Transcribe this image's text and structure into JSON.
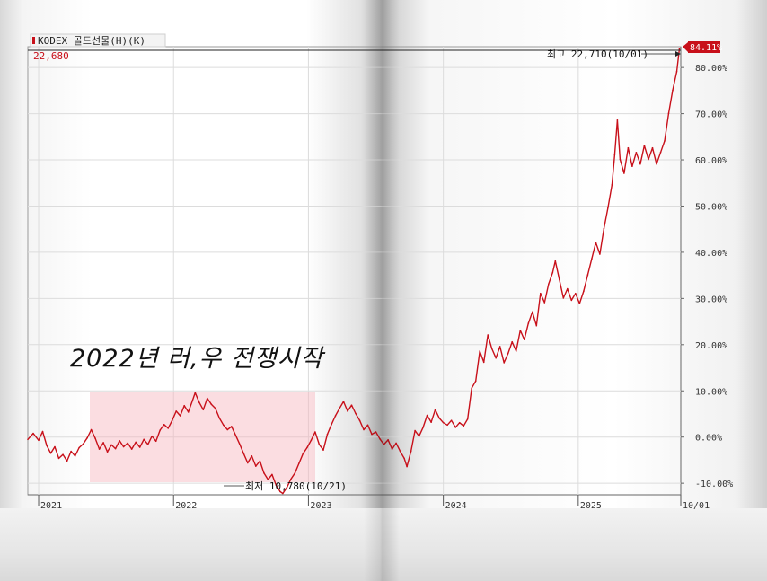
{
  "chart_data": {
    "type": "line",
    "legend_label": "KODEX 골드선물(H)(K)",
    "last_price_label": "22,680",
    "x_tick_labels": [
      "2021",
      "2022",
      "2023",
      "2024",
      "2025",
      "10/01"
    ],
    "y_tick_labels": [
      "80.00%",
      "70.00%",
      "60.00%",
      "50.00%",
      "40.00%",
      "30.00%",
      "20.00%",
      "10.00%",
      "0.00%",
      "-10.00%"
    ],
    "ylim": [
      -12.5,
      84.5
    ],
    "current_value_label": "84.11%",
    "current_value": 84.11,
    "max_annotation": "최고 22,710(10/01)",
    "min_annotation": "최저 10,780(10/21)",
    "handwritten_note": "2022년 러,우 전쟁시작",
    "series_color": "#c8101a",
    "highlight_color": "#f6b3bd",
    "series": [
      {
        "values": [
          [
            2020.92,
            -0.5
          ],
          [
            2020.96,
            0.8
          ],
          [
            2021.0,
            -0.7
          ],
          [
            2021.03,
            1.2
          ],
          [
            2021.06,
            -1.8
          ],
          [
            2021.09,
            -3.5
          ],
          [
            2021.12,
            -2.1
          ],
          [
            2021.15,
            -4.6
          ],
          [
            2021.18,
            -3.8
          ],
          [
            2021.21,
            -5.2
          ],
          [
            2021.24,
            -3.1
          ],
          [
            2021.27,
            -4.1
          ],
          [
            2021.3,
            -2.3
          ],
          [
            2021.33,
            -1.5
          ],
          [
            2021.36,
            -0.2
          ],
          [
            2021.39,
            1.6
          ],
          [
            2021.42,
            -0.3
          ],
          [
            2021.45,
            -2.6
          ],
          [
            2021.48,
            -1.2
          ],
          [
            2021.51,
            -3.2
          ],
          [
            2021.54,
            -1.7
          ],
          [
            2021.57,
            -2.5
          ],
          [
            2021.6,
            -0.8
          ],
          [
            2021.63,
            -2.1
          ],
          [
            2021.66,
            -1.3
          ],
          [
            2021.69,
            -2.6
          ],
          [
            2021.72,
            -1.1
          ],
          [
            2021.75,
            -2.2
          ],
          [
            2021.78,
            -0.5
          ],
          [
            2021.81,
            -1.6
          ],
          [
            2021.84,
            0.2
          ],
          [
            2021.87,
            -0.9
          ],
          [
            2021.9,
            1.5
          ],
          [
            2021.93,
            2.7
          ],
          [
            2021.96,
            1.9
          ],
          [
            2021.99,
            3.6
          ],
          [
            2022.02,
            5.6
          ],
          [
            2022.05,
            4.6
          ],
          [
            2022.08,
            6.8
          ],
          [
            2022.11,
            5.4
          ],
          [
            2022.14,
            7.9
          ],
          [
            2022.16,
            9.6
          ],
          [
            2022.19,
            7.5
          ],
          [
            2022.22,
            5.9
          ],
          [
            2022.25,
            8.4
          ],
          [
            2022.28,
            7.1
          ],
          [
            2022.31,
            6.2
          ],
          [
            2022.34,
            4.1
          ],
          [
            2022.37,
            2.6
          ],
          [
            2022.4,
            1.6
          ],
          [
            2022.43,
            2.3
          ],
          [
            2022.46,
            0.4
          ],
          [
            2022.49,
            -1.5
          ],
          [
            2022.52,
            -3.6
          ],
          [
            2022.55,
            -5.6
          ],
          [
            2022.58,
            -4.1
          ],
          [
            2022.61,
            -6.3
          ],
          [
            2022.64,
            -5.2
          ],
          [
            2022.67,
            -7.8
          ],
          [
            2022.7,
            -9.2
          ],
          [
            2022.73,
            -8.1
          ],
          [
            2022.76,
            -10.4
          ],
          [
            2022.79,
            -11.8
          ],
          [
            2022.81,
            -12.2
          ],
          [
            2022.84,
            -10.9
          ],
          [
            2022.87,
            -9.1
          ],
          [
            2022.9,
            -7.8
          ],
          [
            2022.93,
            -5.7
          ],
          [
            2022.96,
            -3.6
          ],
          [
            2022.99,
            -2.3
          ],
          [
            2023.02,
            -0.7
          ],
          [
            2023.05,
            1.1
          ],
          [
            2023.08,
            -1.6
          ],
          [
            2023.11,
            -2.8
          ],
          [
            2023.14,
            0.6
          ],
          [
            2023.17,
            2.7
          ],
          [
            2023.2,
            4.6
          ],
          [
            2023.23,
            6.2
          ],
          [
            2023.26,
            7.7
          ],
          [
            2023.29,
            5.6
          ],
          [
            2023.32,
            6.9
          ],
          [
            2023.35,
            5.1
          ],
          [
            2023.38,
            3.6
          ],
          [
            2023.41,
            1.6
          ],
          [
            2023.44,
            2.6
          ],
          [
            2023.47,
            0.6
          ],
          [
            2023.5,
            1.1
          ],
          [
            2023.53,
            -0.4
          ],
          [
            2023.56,
            -1.6
          ],
          [
            2023.59,
            -0.6
          ],
          [
            2023.62,
            -2.6
          ],
          [
            2023.65,
            -1.3
          ],
          [
            2023.68,
            -3.1
          ],
          [
            2023.71,
            -4.6
          ],
          [
            2023.73,
            -6.4
          ],
          [
            2023.76,
            -3.1
          ],
          [
            2023.79,
            1.4
          ],
          [
            2023.82,
            0.2
          ],
          [
            2023.85,
            2.1
          ],
          [
            2023.88,
            4.7
          ],
          [
            2023.91,
            3.2
          ],
          [
            2023.94,
            5.9
          ],
          [
            2023.97,
            4.1
          ],
          [
            2024.0,
            3.1
          ],
          [
            2024.03,
            2.6
          ],
          [
            2024.06,
            3.6
          ],
          [
            2024.09,
            2.1
          ],
          [
            2024.12,
            3.1
          ],
          [
            2024.15,
            2.4
          ],
          [
            2024.18,
            3.9
          ],
          [
            2024.21,
            10.6
          ],
          [
            2024.24,
            12.1
          ],
          [
            2024.27,
            18.6
          ],
          [
            2024.3,
            16.2
          ],
          [
            2024.33,
            22.1
          ],
          [
            2024.36,
            19.1
          ],
          [
            2024.39,
            17.1
          ],
          [
            2024.42,
            19.6
          ],
          [
            2024.45,
            16.1
          ],
          [
            2024.48,
            18.1
          ],
          [
            2024.51,
            20.6
          ],
          [
            2024.54,
            18.6
          ],
          [
            2024.57,
            23.1
          ],
          [
            2024.6,
            21.1
          ],
          [
            2024.63,
            24.6
          ],
          [
            2024.66,
            27.1
          ],
          [
            2024.69,
            24.1
          ],
          [
            2024.72,
            31.1
          ],
          [
            2024.75,
            29.1
          ],
          [
            2024.78,
            33.1
          ],
          [
            2024.81,
            35.6
          ],
          [
            2024.83,
            38.1
          ],
          [
            2024.86,
            34.1
          ],
          [
            2024.89,
            30.1
          ],
          [
            2024.92,
            32.1
          ],
          [
            2024.95,
            29.6
          ],
          [
            2024.98,
            31.1
          ],
          [
            2025.01,
            28.9
          ],
          [
            2025.04,
            31.6
          ],
          [
            2025.07,
            35.1
          ],
          [
            2025.1,
            38.6
          ],
          [
            2025.13,
            42.1
          ],
          [
            2025.16,
            39.6
          ],
          [
            2025.19,
            45.1
          ],
          [
            2025.22,
            49.6
          ],
          [
            2025.25,
            54.6
          ],
          [
            2025.27,
            61.1
          ],
          [
            2025.29,
            68.6
          ],
          [
            2025.31,
            60.1
          ],
          [
            2025.34,
            57.1
          ],
          [
            2025.37,
            62.6
          ],
          [
            2025.4,
            58.6
          ],
          [
            2025.43,
            61.6
          ],
          [
            2025.46,
            59.1
          ],
          [
            2025.49,
            63.1
          ],
          [
            2025.52,
            60.1
          ],
          [
            2025.55,
            62.6
          ],
          [
            2025.58,
            59.1
          ],
          [
            2025.61,
            61.6
          ],
          [
            2025.64,
            64.1
          ],
          [
            2025.67,
            70.1
          ],
          [
            2025.7,
            75.1
          ],
          [
            2025.73,
            79.1
          ],
          [
            2025.75,
            84.11
          ]
        ]
      }
    ]
  }
}
